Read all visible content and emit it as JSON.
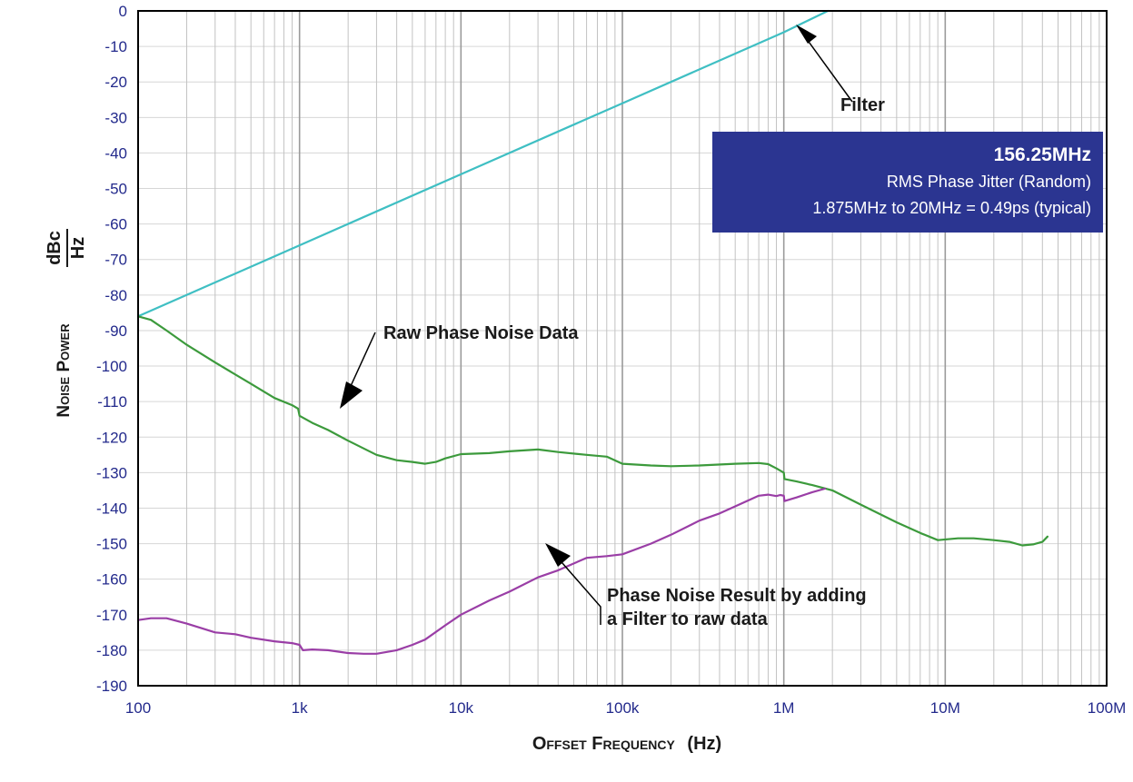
{
  "chart_data": {
    "type": "line",
    "title": "",
    "xlabel": {
      "main": "Offset Frequency",
      "unit": "(Hz)"
    },
    "ylabel": {
      "main": "Noise Power",
      "unit_numerator": "dBc",
      "unit_denominator": "Hz"
    },
    "x_scale": "log",
    "xlim": [
      100,
      100000000
    ],
    "ylim": [
      -190,
      0
    ],
    "x_ticks": [
      {
        "value": 100,
        "label": "100"
      },
      {
        "value": 1000,
        "label": "1k"
      },
      {
        "value": 10000,
        "label": "10k"
      },
      {
        "value": 100000,
        "label": "100k"
      },
      {
        "value": 1000000,
        "label": "1M"
      },
      {
        "value": 10000000,
        "label": "10M"
      },
      {
        "value": 100000000,
        "label": "100M"
      }
    ],
    "y_ticks": [
      0,
      -10,
      -20,
      -30,
      -40,
      -50,
      -60,
      -70,
      -80,
      -90,
      -100,
      -110,
      -120,
      -130,
      -140,
      -150,
      -160,
      -170,
      -180,
      -190
    ],
    "grid": true,
    "series": [
      {
        "key": "filter",
        "color": "#3fbfc3",
        "x": [
          100,
          1000,
          10000,
          100000,
          1000000,
          1875000
        ],
        "y": [
          -86,
          -66,
          -46,
          -26,
          -6,
          0
        ]
      },
      {
        "key": "raw",
        "color": "#3c9a3c",
        "x": [
          100,
          120,
          150,
          200,
          300,
          500,
          700,
          900,
          980,
          1000,
          1200,
          1500,
          2000,
          3000,
          4000,
          5000,
          6000,
          7000,
          8000,
          10000,
          15000,
          20000,
          30000,
          40000,
          60000,
          80000,
          100000,
          150000,
          200000,
          300000,
          500000,
          700000,
          800000,
          900000,
          1000000,
          1010000,
          1200000,
          1500000,
          2000000,
          3000000,
          5000000,
          7000000,
          9000000,
          12000000,
          15000000,
          20000000,
          25000000,
          30000000,
          35000000,
          40000000,
          43000000
        ],
        "y": [
          -86,
          -87,
          -90,
          -94,
          -99,
          -105,
          -109,
          -111,
          -112,
          -114,
          -116,
          -118,
          -121,
          -125,
          -126.5,
          -127,
          -127.5,
          -127,
          -126,
          -124.8,
          -124.5,
          -124,
          -123.5,
          -124.2,
          -125,
          -125.5,
          -127.5,
          -128,
          -128.2,
          -128,
          -127.5,
          -127.3,
          -127.6,
          -128.8,
          -130,
          -131.8,
          -132.5,
          -133.5,
          -135,
          -139,
          -144,
          -147,
          -149,
          -148.5,
          -148.5,
          -149,
          -149.5,
          -150.5,
          -150.2,
          -149.5,
          -148
        ]
      },
      {
        "key": "filtered",
        "color": "#9a3ea6",
        "x": [
          100,
          120,
          150,
          200,
          300,
          400,
          500,
          700,
          900,
          1000,
          1050,
          1200,
          1500,
          2000,
          2500,
          3000,
          4000,
          5000,
          6000,
          8000,
          10000,
          15000,
          20000,
          30000,
          40000,
          60000,
          80000,
          100000,
          150000,
          200000,
          300000,
          400000,
          500000,
          700000,
          800000,
          900000,
          950000,
          1000000,
          1010000,
          1200000,
          1500000,
          1800000
        ],
        "y": [
          -171.5,
          -171,
          -171,
          -172.5,
          -175,
          -175.5,
          -176.5,
          -177.5,
          -178,
          -178.5,
          -180,
          -179.8,
          -180,
          -180.8,
          -181,
          -181,
          -180,
          -178.5,
          -177,
          -173,
          -170,
          -166,
          -163.5,
          -159.5,
          -157.5,
          -154,
          -153.5,
          -153,
          -150,
          -147.5,
          -143.5,
          -141.5,
          -139.5,
          -136.5,
          -136.2,
          -136.6,
          -136.3,
          -136.5,
          -138,
          -137,
          -135.5,
          -134.5
        ]
      }
    ],
    "annotations": [
      {
        "key": "filter",
        "lines": [
          "Filter"
        ]
      },
      {
        "key": "raw",
        "lines": [
          "Raw Phase Noise Data"
        ]
      },
      {
        "key": "filtered",
        "lines": [
          "Phase Noise Result by adding",
          "a Filter to raw data"
        ]
      }
    ],
    "info_box": {
      "line1": "156.25MHz",
      "line2": "RMS Phase Jitter  (Random)",
      "line3": "1.875MHz to 20MHz = 0.49ps (typical)",
      "background": "#2b3591"
    }
  }
}
